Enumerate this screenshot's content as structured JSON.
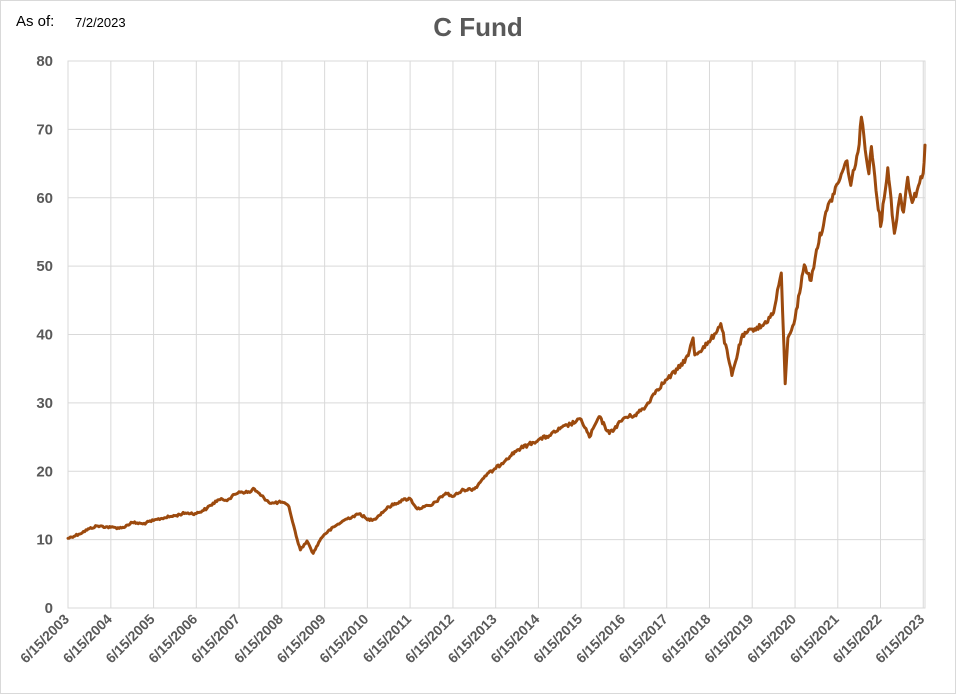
{
  "header": {
    "asof_label": "As of:",
    "asof_date": "7/2/2023",
    "title": "C Fund"
  },
  "colors": {
    "line": "#9C4A0E",
    "grid": "#d9d9d9",
    "text": "#595959"
  },
  "chart_data": {
    "type": "line",
    "title": "C Fund",
    "xlabel": "",
    "ylabel": "",
    "ylim": [
      0,
      80
    ],
    "yticks": [
      0,
      10,
      20,
      30,
      40,
      50,
      60,
      70,
      80
    ],
    "xticks": [
      "6/15/2003",
      "6/15/2004",
      "6/15/2005",
      "6/15/2006",
      "6/15/2007",
      "6/15/2008",
      "6/15/2009",
      "6/15/2010",
      "6/15/2011",
      "6/15/2012",
      "6/15/2013",
      "6/15/2014",
      "6/15/2015",
      "6/15/2016",
      "6/15/2017",
      "6/15/2018",
      "6/15/2019",
      "6/15/2020",
      "6/15/2021",
      "6/15/2022",
      "6/15/2023"
    ],
    "xlim": [
      "6/15/2003",
      "6/30/2023"
    ],
    "grid": true,
    "legend": "none",
    "series": [
      {
        "x": [
          "6/15/2003",
          "9/15/2003",
          "12/15/2003",
          "2/15/2004",
          "6/15/2004",
          "9/15/2004",
          "12/15/2004",
          "3/15/2005",
          "6/15/2005",
          "9/15/2005",
          "12/15/2005",
          "3/15/2006",
          "6/15/2006",
          "9/15/2006",
          "12/15/2006",
          "3/15/2007",
          "6/15/2007",
          "9/15/2007",
          "10/15/2007",
          "12/15/2007",
          "3/15/2008",
          "6/15/2008",
          "8/15/2008",
          "10/15/2008",
          "11/20/2008",
          "1/15/2009",
          "3/9/2009",
          "5/15/2009",
          "6/15/2009",
          "9/15/2009",
          "12/15/2009",
          "4/15/2010",
          "6/15/2010",
          "8/15/2010",
          "12/15/2010",
          "4/15/2011",
          "6/15/2011",
          "8/15/2011",
          "10/15/2011",
          "12/15/2011",
          "4/15/2012",
          "6/15/2012",
          "9/15/2012",
          "12/15/2012",
          "3/15/2013",
          "6/15/2013",
          "9/15/2013",
          "12/15/2013",
          "6/15/2014",
          "9/15/2014",
          "12/15/2014",
          "6/15/2015",
          "8/25/2015",
          "11/15/2015",
          "2/11/2016",
          "6/15/2016",
          "9/15/2016",
          "12/15/2016",
          "3/15/2017",
          "6/15/2017",
          "9/15/2017",
          "12/15/2017",
          "1/26/2018",
          "2/10/2018",
          "6/15/2018",
          "9/20/2018",
          "12/24/2018",
          "3/15/2019",
          "6/15/2019",
          "9/15/2019",
          "12/15/2019",
          "2/19/2020",
          "3/23/2020",
          "4/15/2020",
          "6/15/2020",
          "9/2/2020",
          "10/30/2020",
          "12/15/2020",
          "3/15/2021",
          "6/15/2021",
          "9/2/2021",
          "10/4/2021",
          "12/15/2021",
          "1/3/2022",
          "3/8/2022",
          "3/29/2022",
          "6/16/2022",
          "8/16/2022",
          "10/12/2022",
          "12/1/2022",
          "12/28/2022",
          "2/2/2023",
          "3/13/2023",
          "6/15/2023",
          "6/30/2023"
        ],
        "y": [
          10.2,
          10.8,
          11.6,
          12.0,
          11.8,
          11.7,
          12.5,
          12.3,
          12.8,
          13.2,
          13.5,
          13.9,
          13.8,
          14.6,
          15.8,
          15.9,
          17.0,
          16.9,
          17.5,
          16.5,
          15.3,
          15.5,
          14.8,
          10.5,
          8.5,
          9.8,
          8.0,
          10.2,
          10.8,
          12.0,
          13.0,
          13.8,
          12.9,
          13.0,
          14.8,
          15.8,
          16.0,
          14.5,
          14.8,
          15.0,
          16.8,
          16.3,
          17.3,
          17.4,
          19.3,
          20.4,
          21.8,
          23.1,
          24.6,
          25.2,
          26.2,
          27.6,
          25.0,
          28.0,
          25.5,
          27.8,
          28.2,
          29.4,
          31.8,
          33.4,
          34.9,
          36.9,
          39.5,
          37.0,
          38.9,
          41.6,
          34.0,
          39.5,
          40.8,
          41.3,
          43.2,
          49.0,
          32.8,
          39.5,
          42.3,
          50.2,
          47.9,
          52.4,
          58.2,
          62.1,
          65.4,
          61.8,
          67.8,
          71.8,
          63.5,
          67.5,
          55.8,
          64.4,
          54.8,
          60.5,
          57.9,
          63.0,
          59.3,
          63.6,
          67.7
        ]
      }
    ]
  }
}
